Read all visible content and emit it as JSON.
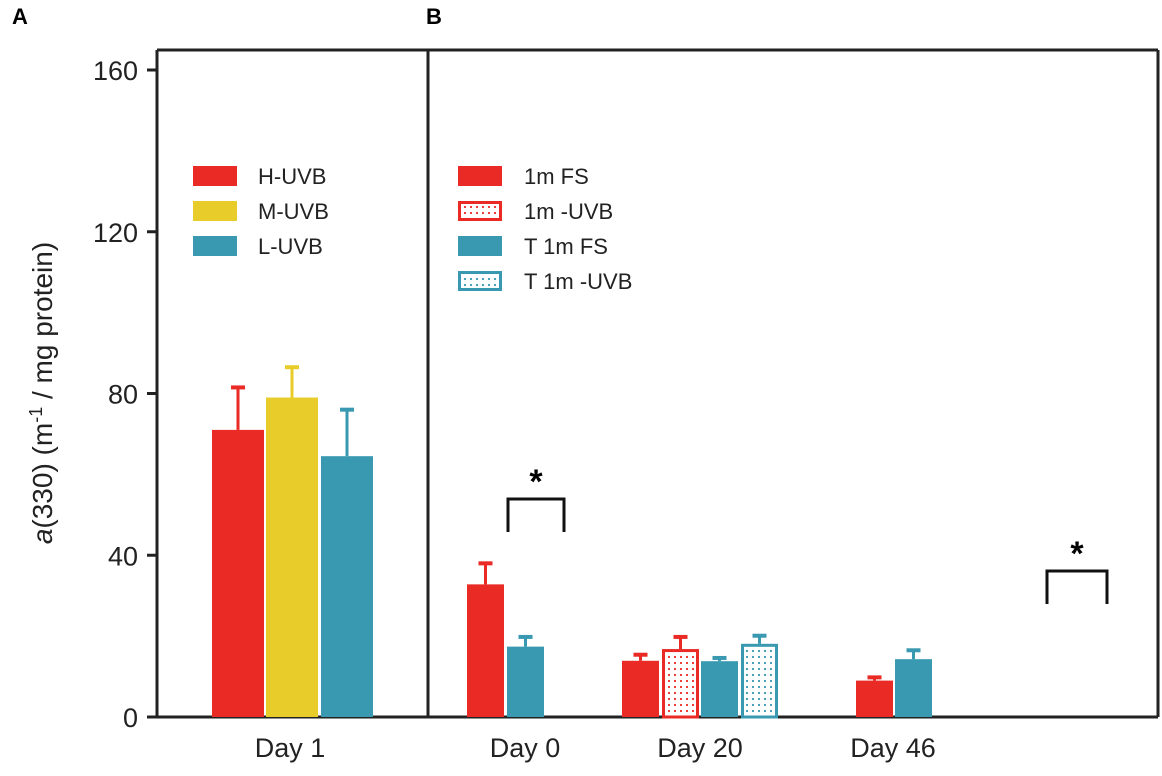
{
  "chart_data": [
    {
      "panel": "A",
      "type": "bar",
      "categories": [
        "Day 1"
      ],
      "series": [
        {
          "name": "H-UVB",
          "color": "#e92a25",
          "pattern": "solid",
          "values": [
            71
          ],
          "error": [
            10.5
          ]
        },
        {
          "name": "M-UVB",
          "color": "#e8cc2a",
          "pattern": "solid",
          "values": [
            79
          ],
          "error": [
            7.5
          ]
        },
        {
          "name": "L-UVB",
          "color": "#3899b0",
          "pattern": "solid",
          "values": [
            64.5
          ],
          "error": [
            11.5
          ]
        }
      ],
      "ylabel": "a(330) (m-1 / mg protein)",
      "ylim": [
        0,
        160
      ],
      "yticks": [
        "0",
        "40",
        "80",
        "120",
        "160"
      ],
      "legend_position": "upper-left"
    },
    {
      "panel": "B",
      "type": "bar",
      "categories": [
        "Day 0",
        "Day 20",
        "Day 46"
      ],
      "series": [
        {
          "name": "1m FS",
          "color": "#e92a25",
          "pattern": "solid",
          "values": [
            32.8,
            13.9,
            9.0
          ],
          "error": [
            5.2,
            1.5,
            0.8
          ]
        },
        {
          "name": "1m -UVB",
          "color": "#e92a25",
          "pattern": "dotted",
          "values": [
            null,
            16.8,
            null
          ],
          "error": [
            null,
            3.0,
            null
          ]
        },
        {
          "name": "T 1m FS",
          "color": "#3899b0",
          "pattern": "solid",
          "values": [
            17.4,
            13.8,
            14.3
          ],
          "error": [
            2.4,
            0.8,
            2.2
          ]
        },
        {
          "name": "T 1m -UVB",
          "color": "#3899b0",
          "pattern": "dotted",
          "values": [
            null,
            18.1,
            null
          ],
          "error": [
            null,
            2.0,
            null
          ]
        }
      ],
      "annotations": [
        {
          "category": "Day 0",
          "text": "*",
          "between": [
            "1m FS",
            "T 1m FS"
          ]
        },
        {
          "category": "Day 46",
          "text": "*",
          "between": [
            "1m FS",
            "T 1m FS"
          ]
        }
      ],
      "ylim": [
        0,
        160
      ],
      "legend_position": "upper-left"
    }
  ],
  "labels": {
    "panel_a": "A",
    "panel_b": "B",
    "ylabel_italic": "a",
    "ylabel_rest": "(330) (m",
    "ylabel_sup": "-1",
    "ylabel_end": " / mg protein)"
  }
}
